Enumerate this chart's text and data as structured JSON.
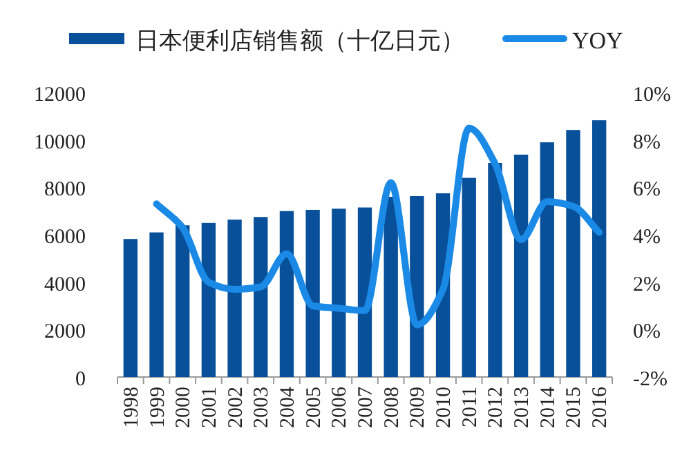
{
  "chart_data": {
    "type": "bar",
    "categories": [
      "1998",
      "1999",
      "2000",
      "2001",
      "2002",
      "2003",
      "2004",
      "2005",
      "2006",
      "2007",
      "2008",
      "2009",
      "2010",
      "2011",
      "2012",
      "2013",
      "2014",
      "2015",
      "2016"
    ],
    "series": [
      {
        "name": "日本便利店销售额（十亿日元）",
        "color": "#08509a",
        "values": [
          5820,
          6100,
          6400,
          6500,
          6640,
          6750,
          7000,
          7050,
          7100,
          7150,
          7600,
          7630,
          7750,
          8400,
          9030,
          9380,
          9900,
          10420,
          10830
        ]
      },
      {
        "name": "YOY",
        "type": "line",
        "axis": "y2",
        "color": "#1a8ae6",
        "values": [
          null,
          5.3,
          4.3,
          2.0,
          1.7,
          1.8,
          3.2,
          1.0,
          0.9,
          0.8,
          6.2,
          0.2,
          1.7,
          8.5,
          7.0,
          3.8,
          5.4,
          5.2,
          4.1
        ]
      }
    ],
    "ylim": [
      0,
      12000
    ],
    "yticks": [
      0,
      2000,
      4000,
      6000,
      8000,
      10000,
      12000
    ],
    "y2lim": [
      -2,
      10
    ],
    "y2ticks": [
      {
        "value": -2,
        "label": "-2%"
      },
      {
        "value": 0,
        "label": "0%"
      },
      {
        "value": 2,
        "label": "2%"
      },
      {
        "value": 4,
        "label": "4%"
      },
      {
        "value": 6,
        "label": "6%"
      },
      {
        "value": 8,
        "label": "8%"
      },
      {
        "value": 10,
        "label": "10%"
      }
    ],
    "legend": "top",
    "grid": false
  }
}
